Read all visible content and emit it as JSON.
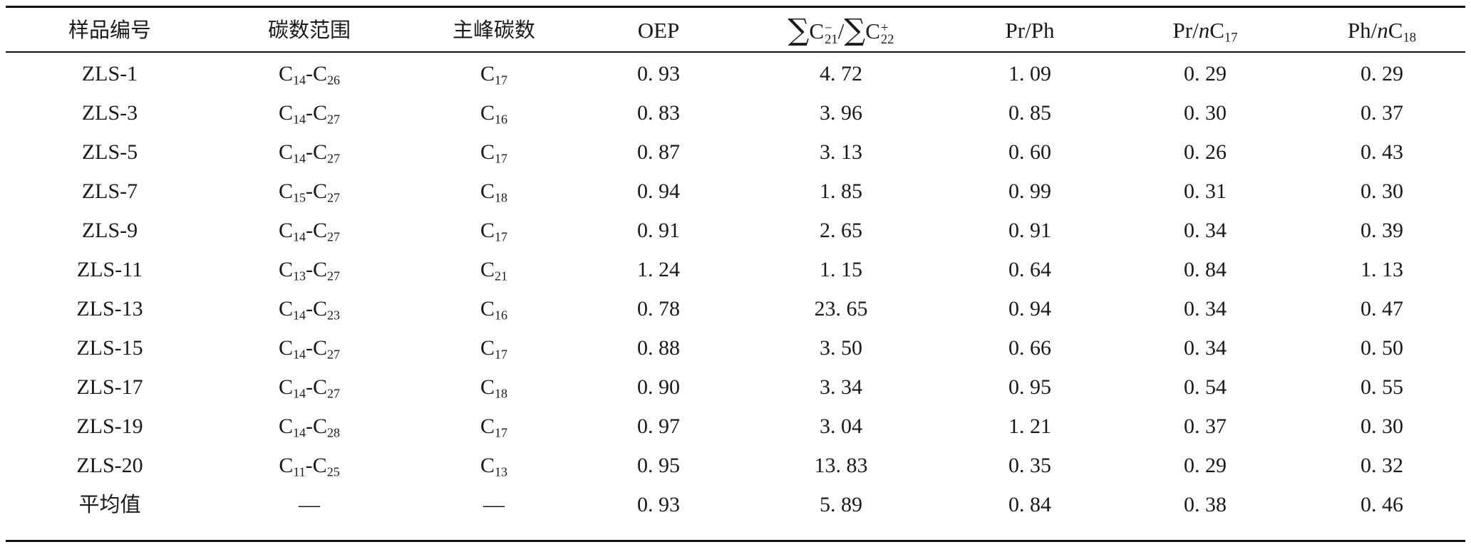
{
  "header": {
    "sample_id": "样品编号",
    "carbon_range": "碳数范围",
    "main_peak": "主峰碳数",
    "oep": "OEP",
    "light_heavy": {
      "sigma1": "∑",
      "c1": "C",
      "sup1": "−",
      "sub1": "21",
      "slash": "/",
      "sigma2": "∑",
      "c2": "C",
      "sup2": "+",
      "sub2": "22"
    },
    "pr_ph": "Pr/Ph",
    "pr_nc17": {
      "a": "Pr/",
      "n": "n",
      "c": "C",
      "sub": "17"
    },
    "ph_nc18": {
      "a": "Ph/",
      "n": "n",
      "c": "C",
      "sub": "18"
    }
  },
  "rows": [
    {
      "id": "ZLS-1",
      "range": {
        "c1": "C",
        "s1": "14",
        "dash": "-",
        "c2": "C",
        "s2": "26"
      },
      "peak": {
        "c": "C",
        "s": "17"
      },
      "oep": "0. 93",
      "ratio": "4. 72",
      "prph": "1. 09",
      "prnc17": "0. 29",
      "phnc18": "0. 29"
    },
    {
      "id": "ZLS-3",
      "range": {
        "c1": "C",
        "s1": "14",
        "dash": "-",
        "c2": "C",
        "s2": "27"
      },
      "peak": {
        "c": "C",
        "s": "16"
      },
      "oep": "0. 83",
      "ratio": "3. 96",
      "prph": "0. 85",
      "prnc17": "0. 30",
      "phnc18": "0. 37"
    },
    {
      "id": "ZLS-5",
      "range": {
        "c1": "C",
        "s1": "14",
        "dash": "-",
        "c2": "C",
        "s2": "27"
      },
      "peak": {
        "c": "C",
        "s": "17"
      },
      "oep": "0. 87",
      "ratio": "3. 13",
      "prph": "0. 60",
      "prnc17": "0. 26",
      "phnc18": "0. 43"
    },
    {
      "id": "ZLS-7",
      "range": {
        "c1": "C",
        "s1": "15",
        "dash": "-",
        "c2": "C",
        "s2": "27"
      },
      "peak": {
        "c": "C",
        "s": "18"
      },
      "oep": "0. 94",
      "ratio": "1. 85",
      "prph": "0. 99",
      "prnc17": "0. 31",
      "phnc18": "0. 30"
    },
    {
      "id": "ZLS-9",
      "range": {
        "c1": "C",
        "s1": "14",
        "dash": "-",
        "c2": "C",
        "s2": "27"
      },
      "peak": {
        "c": "C",
        "s": "17"
      },
      "oep": "0. 91",
      "ratio": "2. 65",
      "prph": "0. 91",
      "prnc17": "0. 34",
      "phnc18": "0. 39"
    },
    {
      "id": "ZLS-11",
      "range": {
        "c1": "C",
        "s1": "13",
        "dash": "-",
        "c2": "C",
        "s2": "27"
      },
      "peak": {
        "c": "C",
        "s": "21"
      },
      "oep": "1. 24",
      "ratio": "1. 15",
      "prph": "0. 64",
      "prnc17": "0. 84",
      "phnc18": "1. 13"
    },
    {
      "id": "ZLS-13",
      "range": {
        "c1": "C",
        "s1": "14",
        "dash": "-",
        "c2": "C",
        "s2": "23"
      },
      "peak": {
        "c": "C",
        "s": "16"
      },
      "oep": "0. 78",
      "ratio": "23. 65",
      "prph": "0. 94",
      "prnc17": "0. 34",
      "phnc18": "0. 47"
    },
    {
      "id": "ZLS-15",
      "range": {
        "c1": "C",
        "s1": "14",
        "dash": "-",
        "c2": "C",
        "s2": "27"
      },
      "peak": {
        "c": "C",
        "s": "17"
      },
      "oep": "0. 88",
      "ratio": "3. 50",
      "prph": "0. 66",
      "prnc17": "0. 34",
      "phnc18": "0. 50"
    },
    {
      "id": "ZLS-17",
      "range": {
        "c1": "C",
        "s1": "14",
        "dash": "-",
        "c2": "C",
        "s2": "27"
      },
      "peak": {
        "c": "C",
        "s": "18"
      },
      "oep": "0. 90",
      "ratio": "3. 34",
      "prph": "0. 95",
      "prnc17": "0. 54",
      "phnc18": "0. 55"
    },
    {
      "id": "ZLS-19",
      "range": {
        "c1": "C",
        "s1": "14",
        "dash": "-",
        "c2": "C",
        "s2": "28"
      },
      "peak": {
        "c": "C",
        "s": "17"
      },
      "oep": "0. 97",
      "ratio": "3. 04",
      "prph": "1. 21",
      "prnc17": "0. 37",
      "phnc18": "0. 30"
    },
    {
      "id": "ZLS-20",
      "range": {
        "c1": "C",
        "s1": "11",
        "dash": "-",
        "c2": "C",
        "s2": "25"
      },
      "peak": {
        "c": "C",
        "s": "13"
      },
      "oep": "0. 95",
      "ratio": "13. 83",
      "prph": "0. 35",
      "prnc17": "0. 29",
      "phnc18": "0. 32"
    }
  ],
  "average": {
    "label": "平均值",
    "range": "—",
    "peak": "—",
    "oep": "0. 93",
    "ratio": "5. 89",
    "prph": "0. 84",
    "prnc17": "0. 38",
    "phnc18": "0. 46"
  }
}
